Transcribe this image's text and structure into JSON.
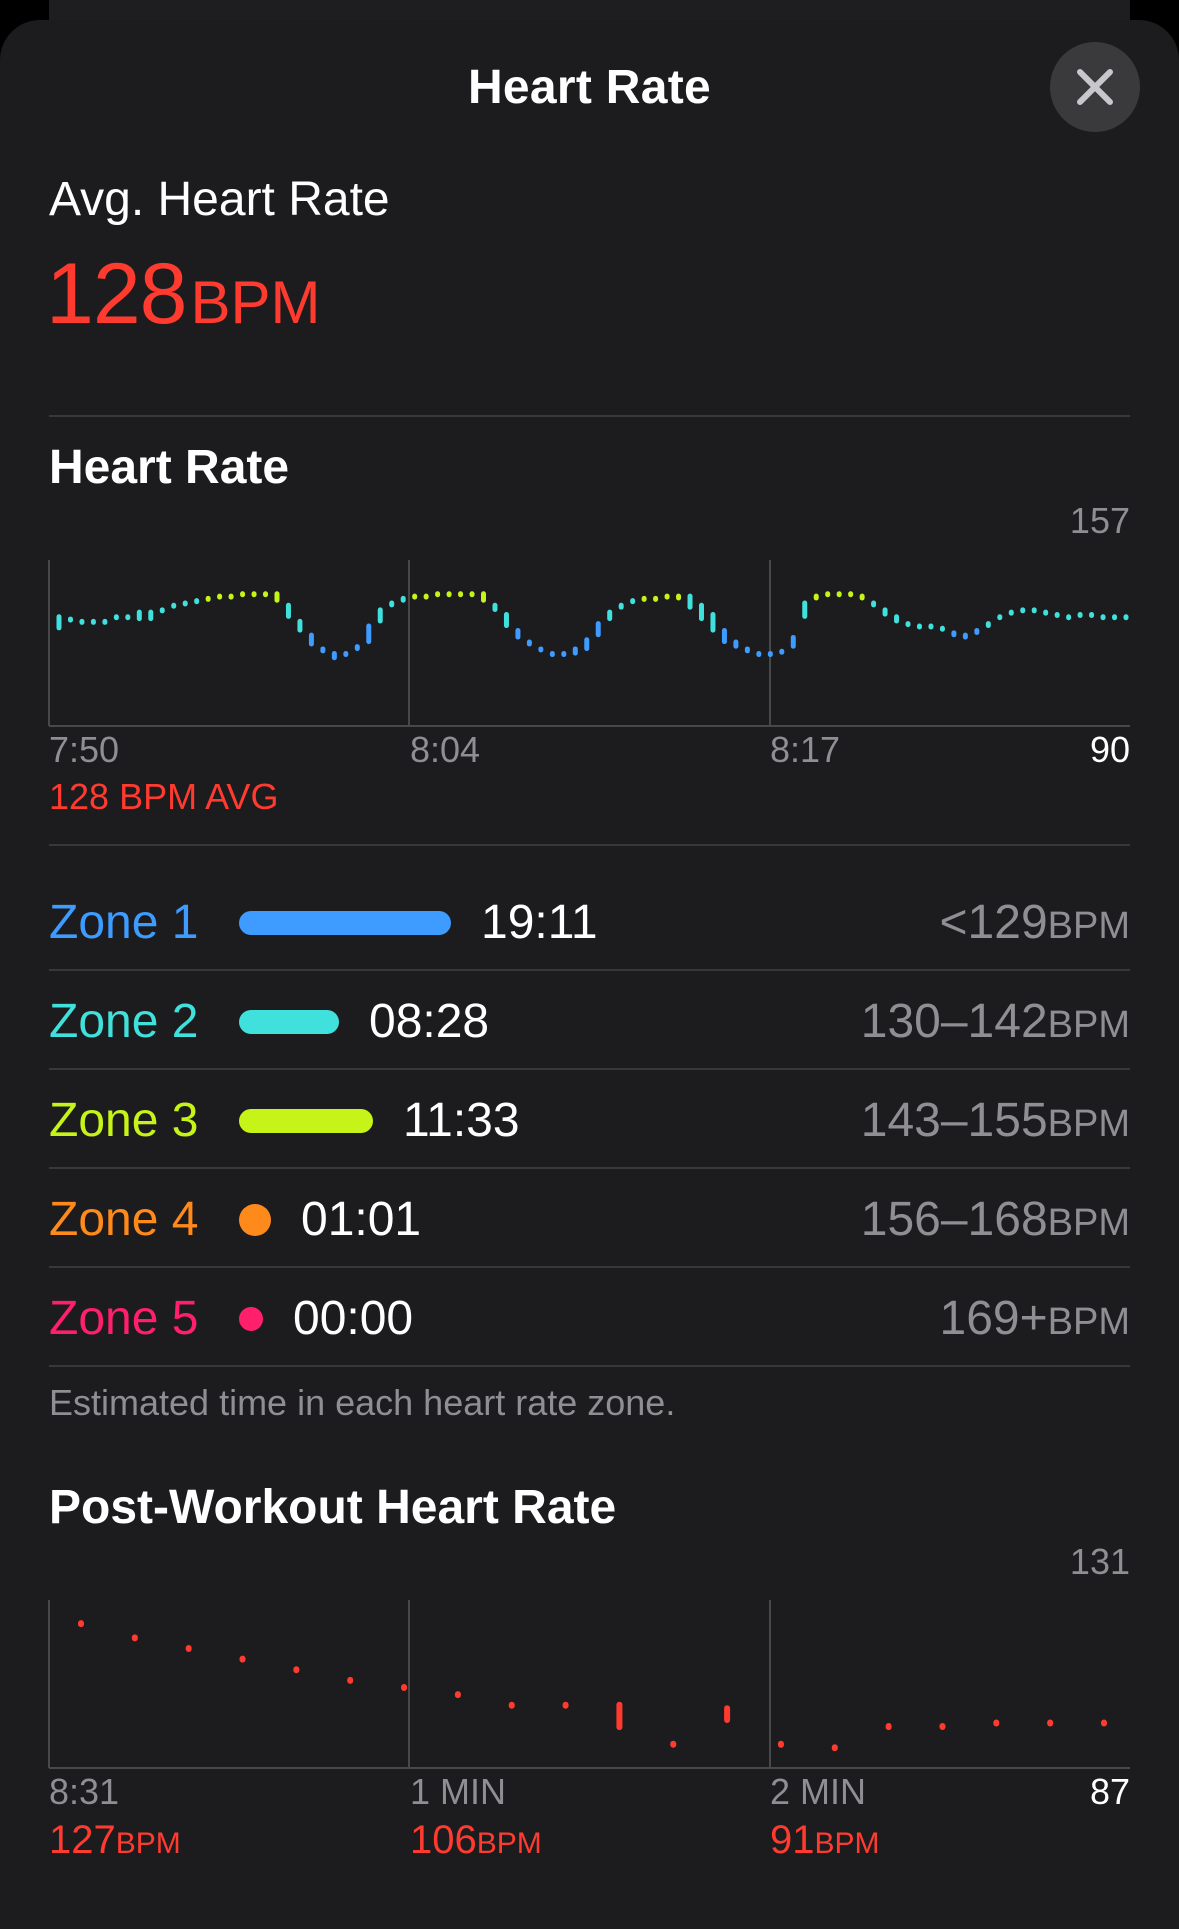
{
  "sheet": {
    "title": "Heart Rate",
    "close_icon": "xmark-icon"
  },
  "summary": {
    "label": "Avg. Heart Rate",
    "value": "128",
    "unit": "BPM",
    "accent_color": "#ff3b30"
  },
  "heart_rate_section": {
    "title": "Heart Rate",
    "y_max_label": "157",
    "y_min_label": "90",
    "x_labels": [
      "7:50",
      "8:04",
      "8:17"
    ],
    "avg_caption": "128 BPM AVG"
  },
  "zones": [
    {
      "name": "Zone 1",
      "time": "19:11",
      "range": "<129",
      "unit": "BPM",
      "color": "#3e9bff",
      "fraction": 1.0
    },
    {
      "name": "Zone 2",
      "time": "08:28",
      "range": "130–142",
      "unit": "BPM",
      "color": "#40e0dc",
      "fraction": 0.47
    },
    {
      "name": "Zone 3",
      "time": "11:33",
      "range": "143–155",
      "unit": "BPM",
      "color": "#c6f418",
      "fraction": 0.63
    },
    {
      "name": "Zone 4",
      "time": "01:01",
      "range": "156–168",
      "unit": "BPM",
      "color": "#ff8a1c",
      "fraction": 0.05
    },
    {
      "name": "Zone 5",
      "time": "00:00",
      "range": "169+",
      "unit": "BPM",
      "color": "#ff1f6a",
      "fraction": 0.0
    }
  ],
  "zones_footnote": "Estimated time in each heart rate zone.",
  "post_workout_section": {
    "title": "Post-Workout Heart Rate",
    "y_max_label": "131",
    "y_min_label": "87",
    "x_labels": [
      "8:31",
      "1 MIN",
      "2 MIN"
    ],
    "markers": [
      {
        "value": "127",
        "unit": "BPM"
      },
      {
        "value": "106",
        "unit": "BPM"
      },
      {
        "value": "91",
        "unit": "BPM"
      }
    ]
  },
  "chart_data": [
    {
      "type": "range-column",
      "title": "Heart Rate",
      "xlabel": "",
      "ylabel": "",
      "x_tick_labels": [
        "7:50",
        "8:04",
        "8:17"
      ],
      "ylim": [
        90,
        157
      ],
      "average": 128,
      "series": [
        {
          "values_low": [
            129,
            135,
            134,
            134,
            134,
            135,
            134,
            133,
            133,
            137,
            139,
            141,
            142,
            143,
            143,
            144,
            144,
            144,
            144,
            141,
            134,
            128,
            122,
            119,
            116,
            118,
            120,
            123,
            132,
            139,
            141,
            143,
            143,
            144,
            144,
            144,
            144,
            141,
            137,
            130,
            125,
            122,
            120,
            119,
            118,
            118,
            120,
            126,
            133,
            138,
            142,
            143,
            143,
            143,
            142,
            138,
            133,
            128,
            123,
            121,
            119,
            119,
            119,
            119,
            121,
            134,
            142,
            145,
            145,
            145,
            142,
            139,
            135,
            132,
            131,
            131,
            131,
            129,
            126,
            125,
            127,
            130,
            134,
            136,
            138,
            138,
            137,
            135,
            135,
            136,
            136,
            135,
            135,
            135
          ],
          "values_high": [
            136,
            135,
            134,
            134,
            134,
            136,
            136,
            138,
            138,
            139,
            141,
            142,
            143,
            144,
            145,
            145,
            146,
            146,
            146,
            146,
            141,
            134,
            128,
            122,
            120,
            120,
            123,
            132,
            139,
            142,
            144,
            145,
            145,
            146,
            146,
            146,
            146,
            146,
            141,
            137,
            130,
            125,
            122,
            120,
            120,
            122,
            126,
            133,
            138,
            141,
            143,
            144,
            144,
            145,
            145,
            145,
            141,
            137,
            130,
            125,
            122,
            120,
            120,
            121,
            127,
            142,
            145,
            146,
            146,
            146,
            145,
            142,
            139,
            136,
            133,
            132,
            132,
            131,
            129,
            128,
            130,
            133,
            136,
            138,
            139,
            139,
            138,
            137,
            136,
            137,
            137,
            136,
            136,
            136
          ]
        }
      ]
    },
    {
      "type": "range-column",
      "title": "Post-Workout Heart Rate",
      "xlabel": "",
      "ylabel": "",
      "x_tick_labels": [
        "8:31",
        "1 MIN",
        "2 MIN"
      ],
      "ylim": [
        87,
        131
      ],
      "series": [
        {
          "name": "",
          "values_low": [
            127,
            123,
            119,
            116,
            113,
            110,
            108,
            105,
            103,
            103,
            96,
            92,
            98,
            91,
            91,
            96,
            97,
            98,
            98,
            98
          ],
          "values_high": [
            126,
            123,
            120,
            117,
            114,
            111,
            109,
            107,
            104,
            104,
            104,
            93,
            103,
            93,
            92,
            98,
            98,
            99,
            99,
            99
          ]
        }
      ],
      "markers": [
        {
          "label": "8:31",
          "value": 127
        },
        {
          "label": "1 MIN",
          "value": 106
        },
        {
          "label": "2 MIN",
          "value": 91
        }
      ]
    }
  ]
}
